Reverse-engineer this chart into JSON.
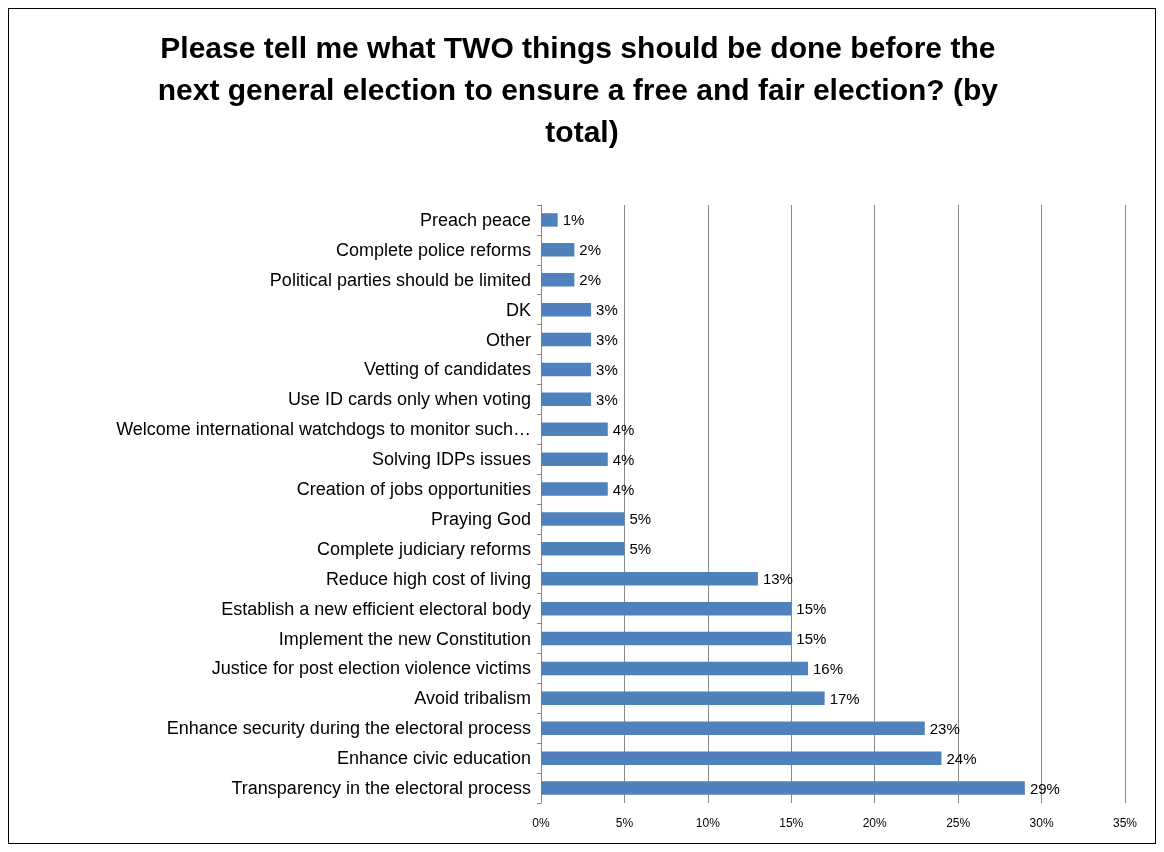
{
  "chart_data": {
    "type": "bar",
    "orientation": "horizontal",
    "title": "Please tell me what TWO things should be done before the next general election to ensure a free and fair election? (by total)",
    "categories": [
      "Preach peace",
      "Complete police reforms",
      "Political parties should be limited",
      "DK",
      "Other",
      "Vetting of candidates",
      "Use ID cards only when voting",
      "Welcome international watchdogs to monitor such…",
      "Solving IDPs issues",
      "Creation of jobs opportunities",
      "Praying God",
      "Complete judiciary reforms",
      "Reduce high cost of living",
      "Establish a new efficient electoral body",
      "Implement the new Constitution",
      "Justice for post election violence victims",
      "Avoid tribalism",
      "Enhance security during the electoral process",
      "Enhance civic education",
      "Transparency in the electoral process"
    ],
    "values": [
      1,
      2,
      2,
      3,
      3,
      3,
      3,
      4,
      4,
      4,
      5,
      5,
      13,
      15,
      15,
      16,
      17,
      23,
      24,
      29
    ],
    "value_labels": [
      "1%",
      "2%",
      "2%",
      "3%",
      "3%",
      "3%",
      "3%",
      "4%",
      "4%",
      "4%",
      "5%",
      "5%",
      "13%",
      "15%",
      "15%",
      "16%",
      "17%",
      "23%",
      "24%",
      "29%"
    ],
    "color": "#4f81bd",
    "xlim": [
      0,
      35
    ],
    "xticks": [
      {
        "value": 0,
        "label": "0%"
      },
      {
        "value": 5,
        "label": "5%"
      },
      {
        "value": 10,
        "label": "10%"
      },
      {
        "value": 15,
        "label": "15%"
      },
      {
        "value": 20,
        "label": "20%"
      },
      {
        "value": 25,
        "label": "25%"
      },
      {
        "value": 30,
        "label": "30%"
      },
      {
        "value": 35,
        "label": "35%"
      }
    ],
    "grid": "x"
  }
}
